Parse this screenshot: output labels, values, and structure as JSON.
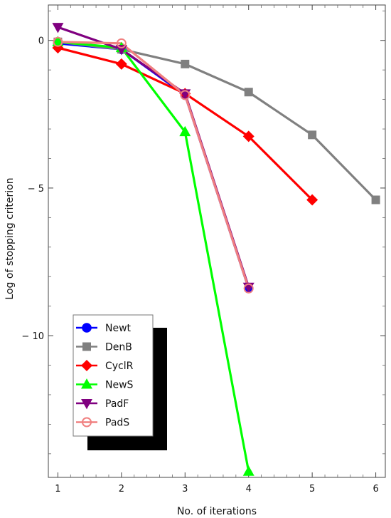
{
  "chart_data": {
    "type": "line",
    "xlabel": "No. of iterations",
    "ylabel": "Log of stopping criterion",
    "xlim": [
      0.85,
      6.15
    ],
    "ylim": [
      -14.8,
      1.2
    ],
    "x_ticks": [
      1,
      2,
      3,
      4,
      5,
      6
    ],
    "y_ticks": [
      0,
      -5,
      -10
    ],
    "y_tick_labels": [
      "0",
      "− 5",
      "− 10"
    ],
    "grid": false,
    "legend_position": "bottom-left",
    "series": [
      {
        "name": "Newt",
        "color": "#0000ff",
        "marker": "circle",
        "x": [
          1,
          2,
          3,
          4
        ],
        "y": [
          -0.1,
          -0.3,
          -1.85,
          -8.4
        ]
      },
      {
        "name": "DenB",
        "color": "#808080",
        "marker": "square",
        "x": [
          1,
          2,
          3,
          4,
          5,
          6
        ],
        "y": [
          -0.05,
          -0.3,
          -0.8,
          -1.75,
          -3.2,
          -5.4
        ]
      },
      {
        "name": "CyclR",
        "color": "#ff0000",
        "marker": "diamond",
        "x": [
          1,
          2,
          3,
          4,
          5
        ],
        "y": [
          -0.25,
          -0.8,
          -1.8,
          -3.25,
          -5.4
        ]
      },
      {
        "name": "NewS",
        "color": "#00ff00",
        "marker": "triangle-up",
        "x": [
          1,
          2,
          3,
          4
        ],
        "y": [
          -0.05,
          -0.25,
          -3.1,
          -14.6
        ]
      },
      {
        "name": "PadF",
        "color": "#800080",
        "marker": "triangle-down",
        "x": [
          1,
          2,
          3,
          4
        ],
        "y": [
          0.45,
          -0.3,
          -1.8,
          -8.35
        ]
      },
      {
        "name": "PadS",
        "color": "#f08080",
        "marker": "open-circle",
        "x": [
          1,
          2,
          3,
          4
        ],
        "y": [
          -0.05,
          -0.1,
          -1.85,
          -8.4
        ]
      }
    ]
  }
}
